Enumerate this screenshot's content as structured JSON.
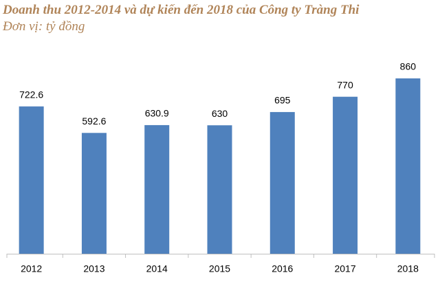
{
  "chart_data": {
    "type": "bar",
    "title": "Doanh thu 2012-2014 và dự kiến đến 2018 của Công ty Tràng Thi",
    "subtitle": "Đơn vị: tỷ đồng",
    "categories": [
      "2012",
      "2013",
      "2014",
      "2015",
      "2016",
      "2017",
      "2018"
    ],
    "values": [
      722.6,
      592.6,
      630.9,
      630,
      695,
      770,
      860
    ],
    "color": "#4f81bd"
  }
}
